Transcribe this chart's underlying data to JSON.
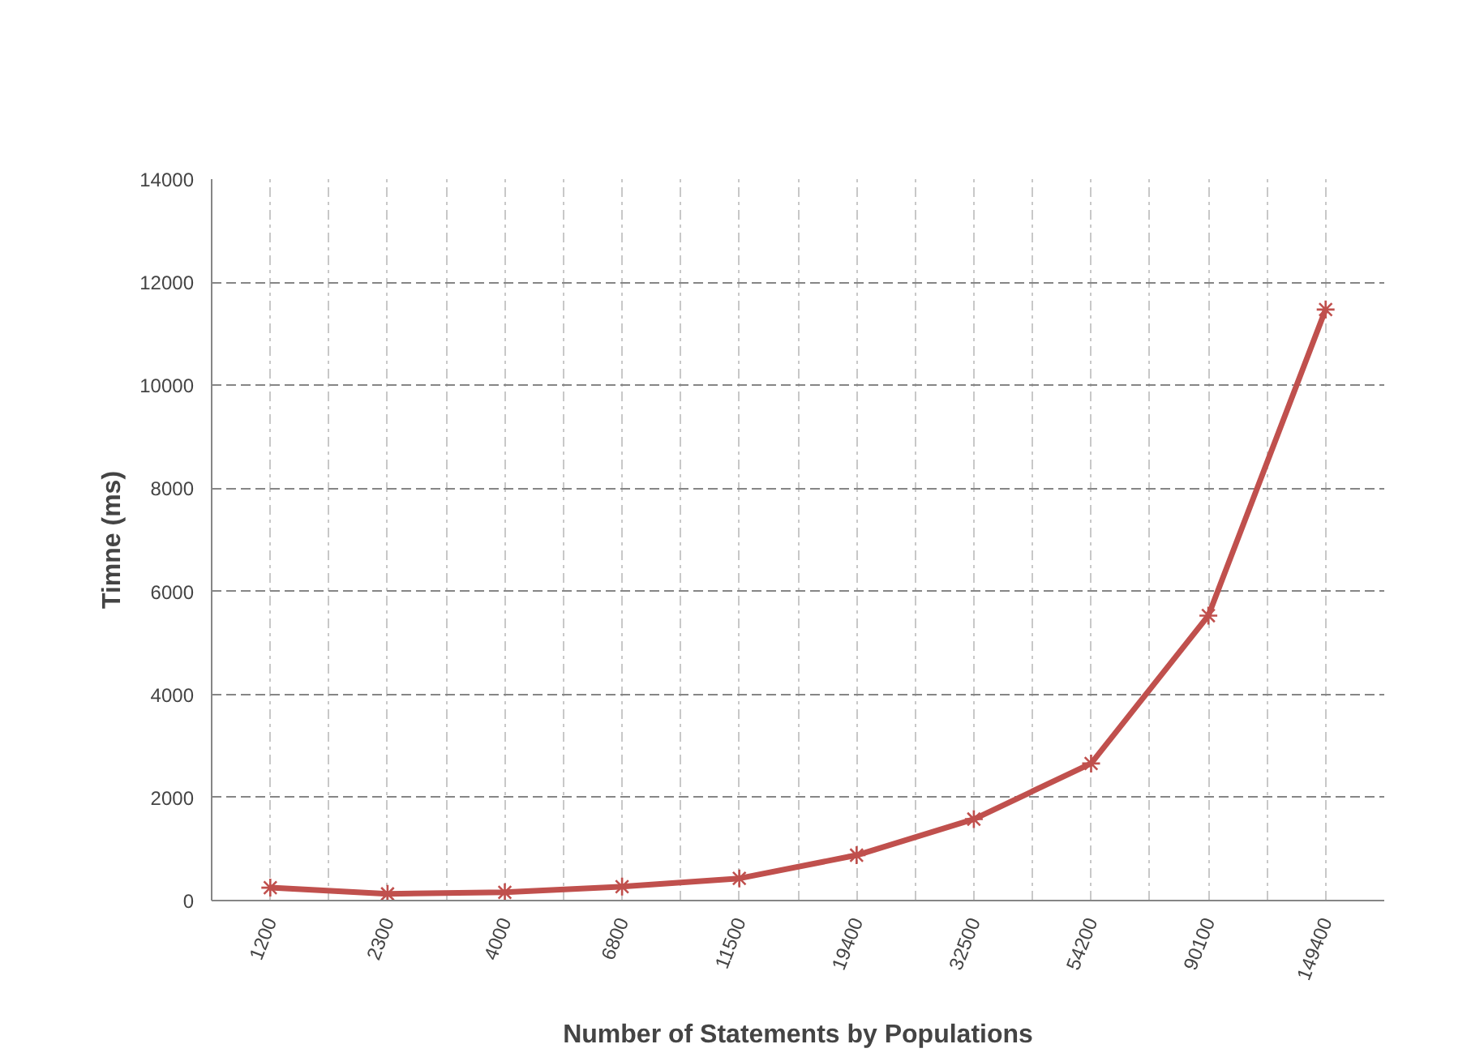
{
  "chart_data": {
    "type": "line",
    "xlabel": "Number of Statements by Populations",
    "ylabel": "Timne (ms)",
    "categories": [
      "1200",
      "2300",
      "4000",
      "6800",
      "11500",
      "19400",
      "32500",
      "54200",
      "90100",
      "149400"
    ],
    "series": [
      {
        "color": "#c0504d",
        "values": [
          250,
          130,
          160,
          270,
          430,
          880,
          1580,
          2660,
          5530,
          11470
        ]
      }
    ],
    "ylim": [
      0,
      14000
    ],
    "yticks": [
      0,
      2000,
      4000,
      6000,
      8000,
      10000,
      12000,
      14000
    ],
    "grid": true,
    "marker": "cross",
    "line_style": "solid"
  }
}
